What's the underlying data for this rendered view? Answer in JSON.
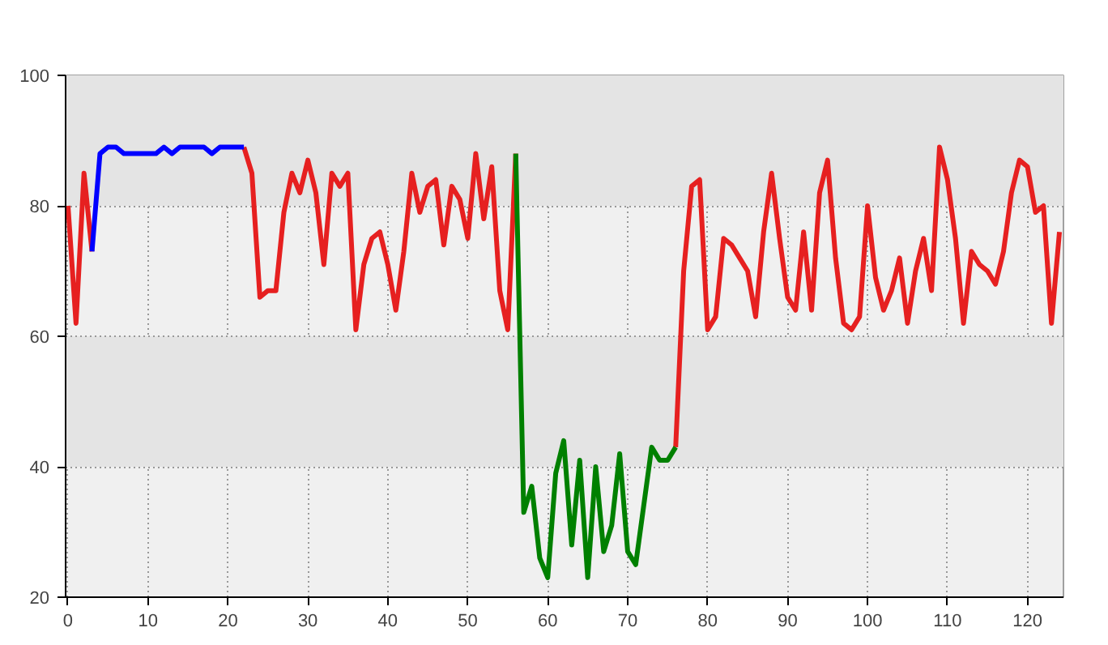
{
  "chart_data": {
    "type": "line",
    "x": [
      0,
      1,
      2,
      3,
      4,
      5,
      6,
      7,
      8,
      9,
      10,
      11,
      12,
      13,
      14,
      15,
      16,
      17,
      18,
      19,
      20,
      21,
      22,
      23,
      24,
      25,
      26,
      27,
      28,
      29,
      30,
      31,
      32,
      33,
      34,
      35,
      36,
      37,
      38,
      39,
      40,
      41,
      42,
      43,
      44,
      45,
      46,
      47,
      48,
      49,
      50,
      51,
      52,
      53,
      54,
      55,
      56,
      57,
      58,
      59,
      60,
      61,
      62,
      63,
      64,
      65,
      66,
      67,
      68,
      69,
      70,
      71,
      72,
      73,
      74,
      75,
      76,
      77,
      78,
      79,
      80,
      81,
      82,
      83,
      84,
      85,
      86,
      87,
      88,
      89,
      90,
      91,
      92,
      93,
      94,
      95,
      96,
      97,
      98,
      99,
      100,
      101,
      102,
      103,
      104,
      105,
      106,
      107,
      108,
      109,
      110,
      111,
      112,
      113,
      114,
      115,
      116,
      117,
      118,
      119,
      120,
      121,
      122,
      123,
      124
    ],
    "series": [
      {
        "color": "#e62020",
        "values": [
          80,
          62,
          85,
          73,
          null,
          null,
          null,
          null,
          null,
          null,
          null,
          null,
          null,
          null,
          null,
          null,
          null,
          null,
          null,
          null,
          null,
          null,
          89,
          85,
          66,
          67,
          67,
          79,
          85,
          82,
          87,
          82,
          71,
          85,
          83,
          85,
          61,
          71,
          75,
          76,
          71,
          64,
          73,
          85,
          79,
          83,
          84,
          74,
          83,
          81,
          75,
          88,
          78,
          86,
          67,
          61,
          88,
          null,
          null,
          null,
          null,
          null,
          null,
          null,
          null,
          null,
          null,
          null,
          null,
          null,
          null,
          null,
          null,
          null,
          null,
          null,
          43,
          70,
          83,
          84,
          61,
          63,
          75,
          74,
          72,
          70,
          63,
          76,
          85,
          75,
          66,
          64,
          76,
          64,
          82,
          87,
          72,
          62,
          61,
          63,
          80,
          69,
          64,
          67,
          72,
          62,
          70,
          75,
          67,
          89,
          84,
          75,
          62,
          73,
          71,
          70,
          68,
          73,
          82,
          87,
          86,
          79,
          80,
          62,
          76
        ]
      },
      {
        "color": "#0000ff",
        "x": [
          3,
          4,
          5,
          6,
          7,
          8,
          9,
          10,
          11,
          12,
          13,
          14,
          15,
          16,
          17,
          18,
          19,
          20,
          21,
          22
        ],
        "values": [
          73,
          88,
          89,
          89,
          88,
          88,
          88,
          88,
          88,
          89,
          88,
          89,
          89,
          89,
          89,
          88,
          89,
          89,
          89,
          89
        ]
      },
      {
        "color": "#008000",
        "x": [
          56,
          57,
          58,
          59,
          60,
          61,
          62,
          63,
          64,
          65,
          66,
          67,
          68,
          69,
          70,
          71,
          72,
          73,
          74,
          75,
          76
        ],
        "values": [
          88,
          33,
          37,
          26,
          23,
          39,
          44,
          28,
          41,
          23,
          40,
          27,
          31,
          42,
          27,
          25,
          34,
          43,
          41,
          41,
          43
        ]
      }
    ],
    "xlim": [
      -0.3,
      124.5
    ],
    "ylim": [
      20,
      100
    ],
    "xticks": [
      0,
      10,
      20,
      30,
      40,
      50,
      60,
      70,
      80,
      90,
      100,
      110,
      120
    ],
    "yticks": [
      20,
      40,
      60,
      80,
      100
    ],
    "grid": true,
    "marker": "none",
    "line_style": "solid"
  }
}
